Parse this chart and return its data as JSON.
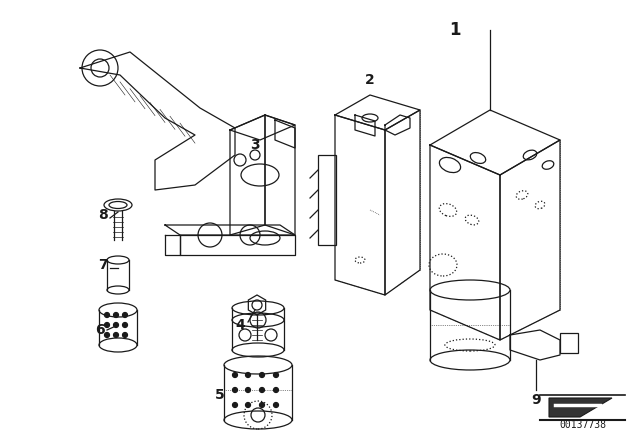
{
  "background_color": "#ffffff",
  "line_color": "#1a1a1a",
  "figure_width": 6.4,
  "figure_height": 4.48,
  "dpi": 100,
  "diagram_id": "00137738"
}
